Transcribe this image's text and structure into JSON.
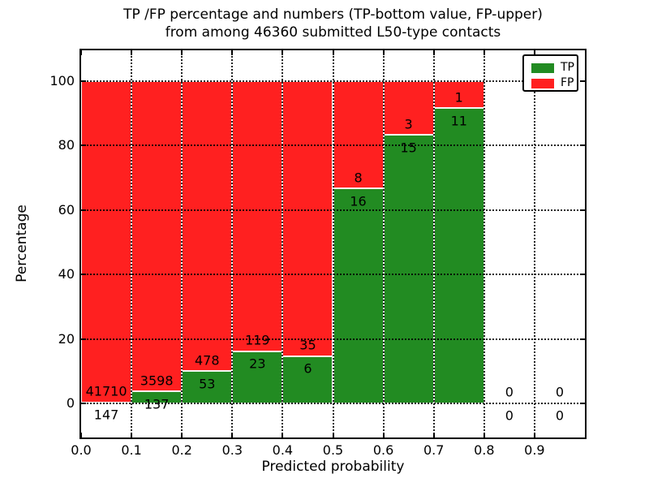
{
  "chart_data": {
    "type": "bar",
    "subtype": "stacked-percentage-histogram",
    "title": "TP /FP percentage and numbers (TP-bottom value, FP-upper)",
    "subtitle": "from among 46360 submitted L50-type contacts",
    "xlabel": "Predicted probability",
    "ylabel": "Percentage",
    "total_submitted_contacts": 46360,
    "xlim": [
      0.0,
      1.0
    ],
    "ylim": [
      -10.6,
      109.6
    ],
    "x_ticks": [
      "0.0",
      "0.1",
      "0.2",
      "0.3",
      "0.4",
      "0.5",
      "0.6",
      "0.7",
      "0.8",
      "0.9"
    ],
    "x_tick_values": [
      0.0,
      0.1,
      0.2,
      0.3,
      0.4,
      0.5,
      0.6,
      0.7,
      0.8,
      0.9
    ],
    "y_ticks": [
      0,
      20,
      40,
      60,
      80,
      100
    ],
    "grid": "dotted-black-over-bars",
    "colors": {
      "tp": "#228b22",
      "fp": "#ff2020",
      "bar_edge": "#ffffff",
      "text": "#000000"
    },
    "legend": {
      "position": "upper-right",
      "entries": [
        {
          "label": "TP",
          "color": "#228b22"
        },
        {
          "label": "FP",
          "color": "#ff2020"
        }
      ]
    },
    "label_rule": "FP count printed above green/red boundary, TP count printed below it",
    "bins": [
      {
        "x_start": 0.0,
        "x_end": 0.1,
        "tp": 147,
        "fp": 41710
      },
      {
        "x_start": 0.1,
        "x_end": 0.2,
        "tp": 137,
        "fp": 3598
      },
      {
        "x_start": 0.2,
        "x_end": 0.3,
        "tp": 53,
        "fp": 478
      },
      {
        "x_start": 0.3,
        "x_end": 0.4,
        "tp": 23,
        "fp": 119
      },
      {
        "x_start": 0.4,
        "x_end": 0.5,
        "tp": 6,
        "fp": 35
      },
      {
        "x_start": 0.5,
        "x_end": 0.6,
        "tp": 16,
        "fp": 8
      },
      {
        "x_start": 0.6,
        "x_end": 0.7,
        "tp": 15,
        "fp": 3
      },
      {
        "x_start": 0.7,
        "x_end": 0.8,
        "tp": 11,
        "fp": 1
      },
      {
        "x_start": 0.8,
        "x_end": 0.9,
        "tp": 0,
        "fp": 0
      },
      {
        "x_start": 0.9,
        "x_end": 1.0,
        "tp": 0,
        "fp": 0
      }
    ]
  }
}
